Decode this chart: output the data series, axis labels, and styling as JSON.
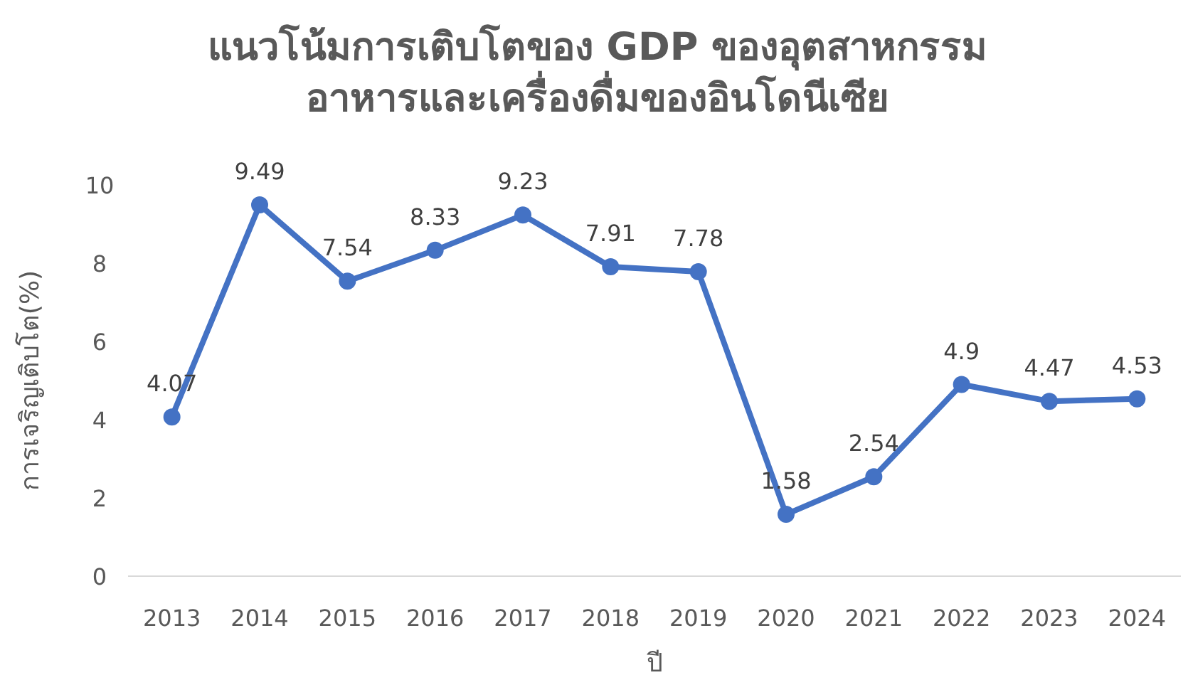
{
  "chart_data": {
    "type": "line",
    "title": "แนวโน้มการเติบโตของ  GDP ของอุตสาหกรรม\nอาหารและเครื่องดื่มของอินโดนีเซีย",
    "xlabel": "ปี",
    "ylabel": "การเจริญเติบโต(%)",
    "categories": [
      "2013",
      "2014",
      "2015",
      "2016",
      "2017",
      "2018",
      "2019",
      "2020",
      "2021",
      "2022",
      "2023",
      "2024"
    ],
    "series": [
      {
        "color": "#4472c4",
        "values": [
          4.07,
          9.49,
          7.54,
          8.33,
          9.23,
          7.91,
          7.78,
          1.58,
          2.54,
          4.9,
          4.47,
          4.53
        ]
      }
    ],
    "ylim": [
      0,
      10
    ],
    "yticks": [
      0,
      2,
      4,
      6,
      8,
      10
    ],
    "data_labels": true,
    "marker": "circle",
    "line_style": "solid",
    "grid": false
  }
}
